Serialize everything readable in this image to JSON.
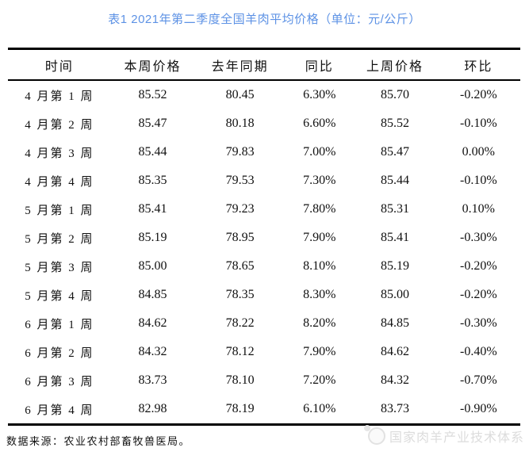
{
  "title": "表1  2021年第二季度全国羊肉平均价格（单位：元/公斤）",
  "colors": {
    "title_blue": "#5d92e5",
    "border_black": "#000000",
    "text": "#111111",
    "watermark_gray": "#dcdcdc"
  },
  "table": {
    "headers": [
      "时间",
      "本周价格",
      "去年同期",
      "同比",
      "上周价格",
      "环比"
    ],
    "rows": [
      [
        "4 月第 1 周",
        "85.52",
        "80.45",
        "6.30%",
        "85.70",
        "-0.20%"
      ],
      [
        "4 月第 2 周",
        "85.47",
        "80.18",
        "6.60%",
        "85.52",
        "-0.10%"
      ],
      [
        "4 月第 3 周",
        "85.44",
        "79.83",
        "7.00%",
        "85.47",
        "0.00%"
      ],
      [
        "4 月第 4 周",
        "85.35",
        "79.53",
        "7.30%",
        "85.44",
        "-0.10%"
      ],
      [
        "5 月第 1 周",
        "85.41",
        "79.23",
        "7.80%",
        "85.31",
        "0.10%"
      ],
      [
        "5 月第 2 周",
        "85.19",
        "78.95",
        "7.90%",
        "85.41",
        "-0.30%"
      ],
      [
        "5 月第 3 周",
        "85.00",
        "78.65",
        "8.10%",
        "85.19",
        "-0.20%"
      ],
      [
        "5 月第 4 周",
        "84.85",
        "78.35",
        "8.30%",
        "85.00",
        "-0.20%"
      ],
      [
        "6 月第 1 周",
        "84.62",
        "78.22",
        "8.20%",
        "84.85",
        "-0.30%"
      ],
      [
        "6 月第 2 周",
        "84.32",
        "78.12",
        "7.90%",
        "84.62",
        "-0.40%"
      ],
      [
        "6 月第 3 周",
        "83.73",
        "78.10",
        "7.20%",
        "84.32",
        "-0.70%"
      ],
      [
        "6 月第 4 周",
        "82.98",
        "78.19",
        "6.10%",
        "83.73",
        "-0.90%"
      ]
    ]
  },
  "footer": {
    "source": "数据来源：农业农村部畜牧兽医局。",
    "watermark": "国家肉羊产业技术体系",
    "watermark_icon": "sheep-logo-icon"
  }
}
